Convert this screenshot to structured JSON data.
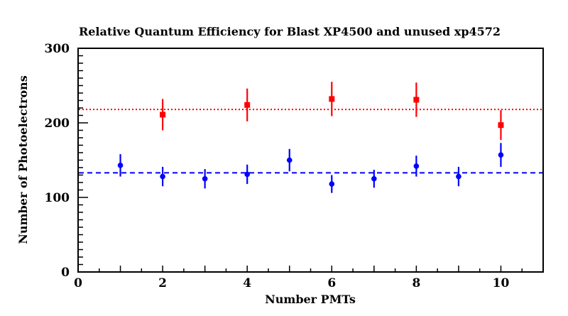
{
  "chart_data": {
    "type": "scatter",
    "title": "Relative Quantum Efficiency for Blast XP4500 and unused xp4572",
    "xlabel": "Number PMTs",
    "ylabel": "Number of Photoelectrons",
    "xlim": [
      0,
      11
    ],
    "ylim": [
      0,
      300
    ],
    "xticks": [
      0,
      2,
      4,
      6,
      8,
      10
    ],
    "yticks": [
      0,
      100,
      200,
      300
    ],
    "grid": false,
    "series": [
      {
        "color": "#ff0000",
        "marker": "square",
        "x": [
          2,
          4,
          6,
          8,
          10
        ],
        "y": [
          211,
          224,
          232,
          231,
          197
        ],
        "yerr": [
          21,
          22,
          23,
          23,
          20
        ]
      },
      {
        "color": "#0000ff",
        "marker": "circle",
        "x": [
          1,
          2,
          3,
          4,
          5,
          6,
          7,
          8,
          9,
          10
        ],
        "y": [
          143,
          128,
          125,
          131,
          150,
          118,
          125,
          142,
          128,
          157
        ],
        "yerr": [
          15,
          13,
          13,
          13,
          15,
          12,
          12,
          14,
          13,
          16
        ]
      }
    ],
    "reference_lines": [
      {
        "y": 218,
        "color": "#ff0000",
        "style": "dotted"
      },
      {
        "y": 133,
        "color": "#0000ff",
        "style": "dashed"
      }
    ]
  }
}
